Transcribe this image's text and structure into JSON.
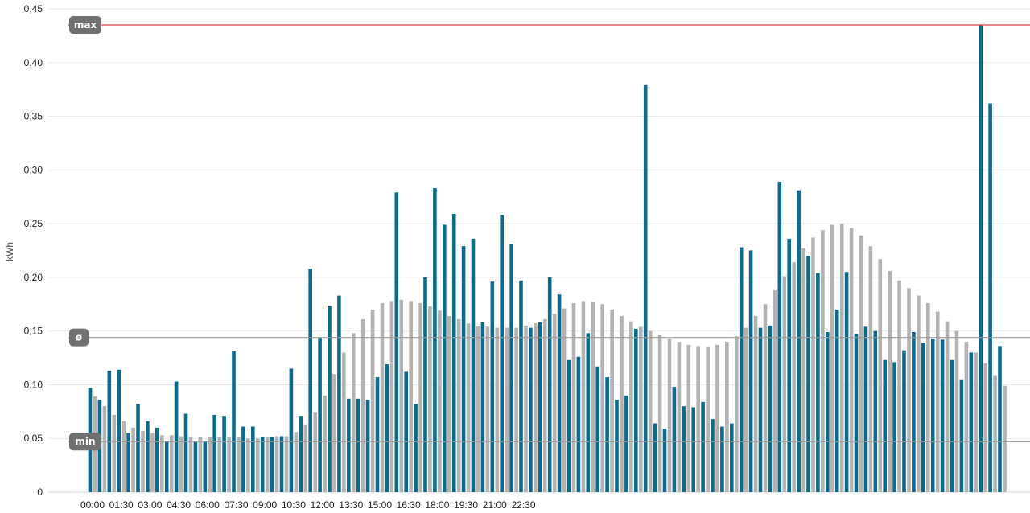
{
  "chart_data": {
    "type": "bar",
    "ylabel": "kWh",
    "ylim": [
      0,
      0.45
    ],
    "y_ticks": [
      {
        "value": 0,
        "label": "0"
      },
      {
        "value": 0.05,
        "label": "0,05"
      },
      {
        "value": 0.1,
        "label": "0,10"
      },
      {
        "value": 0.15,
        "label": "0,15"
      },
      {
        "value": 0.2,
        "label": "0,20"
      },
      {
        "value": 0.25,
        "label": "0,25"
      },
      {
        "value": 0.3,
        "label": "0,30"
      },
      {
        "value": 0.35,
        "label": "0,35"
      },
      {
        "value": 0.4,
        "label": "0,40"
      },
      {
        "value": 0.45,
        "label": "0,45"
      }
    ],
    "x_tick_labels": [
      "00:00",
      "01:30",
      "03:00",
      "04:30",
      "06:00",
      "07:30",
      "09:00",
      "10:30",
      "12:00",
      "13:30",
      "15:00",
      "16:30",
      "18:00",
      "19:30",
      "21:00",
      "22:30"
    ],
    "interval": "30 min",
    "grid": true,
    "legend": "none",
    "colors": {
      "current": "#0d6a8a",
      "comparison": "#b3b3b3",
      "max_line": "#e0403a",
      "ref_line": "#9a9a9a",
      "badge": "#707070"
    },
    "reference_lines": [
      {
        "label": "max",
        "value": 0.435
      },
      {
        "label": "ø",
        "value": 0.144
      },
      {
        "label": "min",
        "value": 0.047
      }
    ],
    "series": [
      {
        "values": [
          0.097,
          0.086,
          0.113,
          0.114,
          0.055,
          0.082,
          0.066,
          0.06,
          0.047,
          0.103,
          0.073,
          0.047,
          0.047,
          0.072,
          0.071,
          0.131,
          0.061,
          0.061,
          0.051,
          0.051,
          0.052,
          0.115,
          0.071,
          0.208,
          0.144,
          0.173,
          0.183,
          0.087,
          0.087,
          0.086,
          0.107,
          0.119,
          0.279,
          0.112,
          0.082,
          0.2,
          0.283,
          0.249,
          0.259,
          0.229,
          0.236,
          0.158,
          0.196,
          0.258,
          0.231,
          0.197,
          0.153,
          0.158,
          0.2,
          0.184,
          0.123,
          0.126,
          0.148,
          0.117,
          0.107,
          0.086,
          0.09,
          0.152,
          0.379,
          0.064,
          0.059,
          0.098,
          0.08,
          0.079,
          0.084,
          0.068,
          0.061,
          0.064,
          0.228,
          0.225,
          0.153,
          0.155,
          0.289,
          0.236,
          0.281,
          0.22,
          0.204,
          0.149,
          0.17,
          0.205,
          0.147,
          0.154,
          0.15,
          0.123,
          0.121,
          0.132,
          0.149,
          0.139,
          0.143,
          0.142,
          0.123,
          0.105,
          0.13,
          0.435,
          0.362,
          0.136
        ]
      },
      {
        "values": [
          0.089,
          0.08,
          0.072,
          0.066,
          0.06,
          0.057,
          0.055,
          0.053,
          0.053,
          0.052,
          0.051,
          0.051,
          0.051,
          0.051,
          0.051,
          0.051,
          0.05,
          0.05,
          0.051,
          0.052,
          0.052,
          0.056,
          0.063,
          0.074,
          0.09,
          0.11,
          0.13,
          0.148,
          0.161,
          0.17,
          0.176,
          0.178,
          0.179,
          0.178,
          0.176,
          0.173,
          0.169,
          0.164,
          0.161,
          0.157,
          0.155,
          0.154,
          0.153,
          0.153,
          0.153,
          0.155,
          0.157,
          0.161,
          0.166,
          0.171,
          0.176,
          0.178,
          0.177,
          0.175,
          0.17,
          0.164,
          0.159,
          0.154,
          0.15,
          0.146,
          0.143,
          0.14,
          0.137,
          0.136,
          0.135,
          0.137,
          0.14,
          0.145,
          0.153,
          0.164,
          0.175,
          0.188,
          0.201,
          0.214,
          0.227,
          0.237,
          0.244,
          0.249,
          0.25,
          0.246,
          0.239,
          0.229,
          0.217,
          0.206,
          0.197,
          0.19,
          0.183,
          0.176,
          0.168,
          0.159,
          0.15,
          0.14,
          0.13,
          0.12,
          0.109,
          0.099
        ]
      }
    ]
  }
}
